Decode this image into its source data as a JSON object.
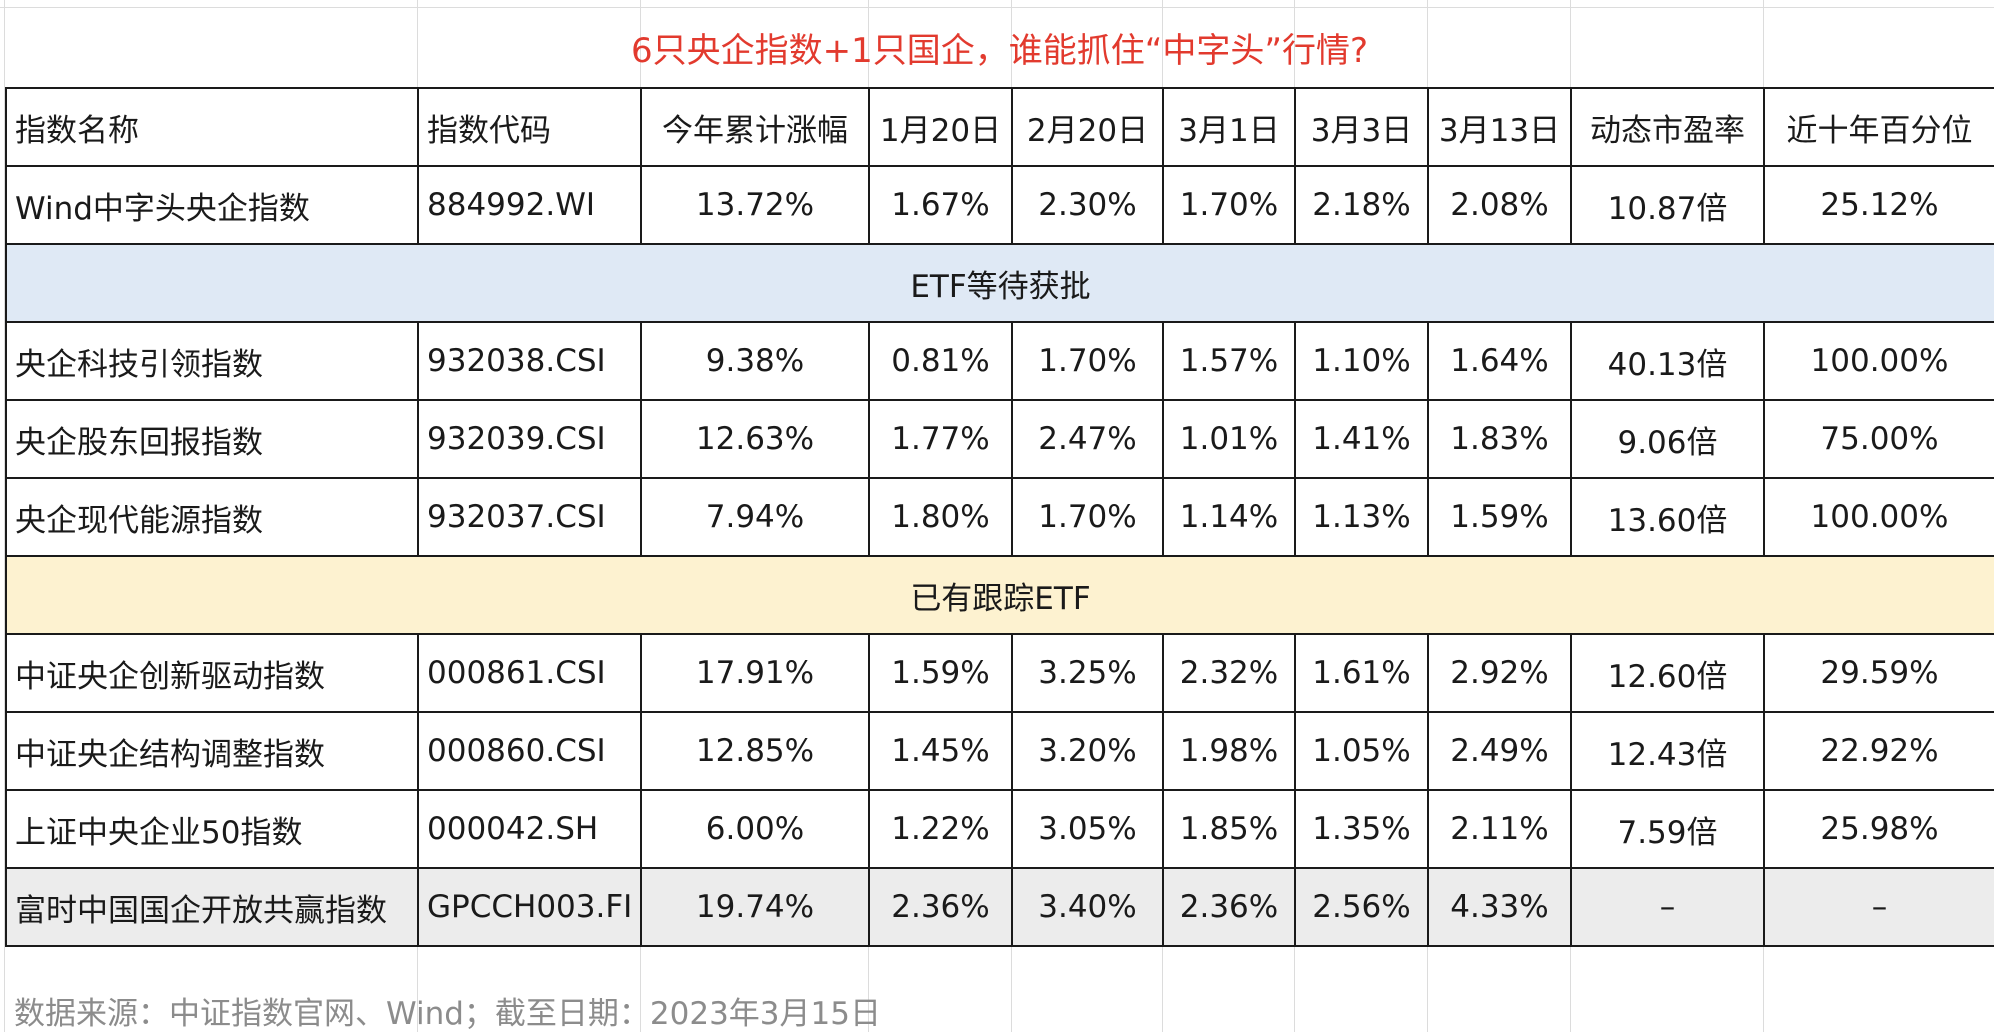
{
  "title": "6只央企指数+1只国企，谁能抓住“中字头”行情?",
  "headers": [
    "指数名称",
    "指数代码",
    "今年累计涨幅",
    "1月20日",
    "2月20日",
    "3月1日",
    "3月3日",
    "3月13日",
    "动态市盈率",
    "近十年百分位"
  ],
  "row_top": [
    "Wind中字头央企指数",
    "884992.WI",
    "13.72%",
    "1.67%",
    "2.30%",
    "1.70%",
    "2.18%",
    "2.08%",
    "10.87倍",
    "25.12%"
  ],
  "section_pending": "ETF等待获批",
  "rows_pending": [
    [
      "央企科技引领指数",
      "932038.CSI",
      "9.38%",
      "0.81%",
      "1.70%",
      "1.57%",
      "1.10%",
      "1.64%",
      "40.13倍",
      "100.00%"
    ],
    [
      "央企股东回报指数",
      "932039.CSI",
      "12.63%",
      "1.77%",
      "2.47%",
      "1.01%",
      "1.41%",
      "1.83%",
      "9.06倍",
      "75.00%"
    ],
    [
      "央企现代能源指数",
      "932037.CSI",
      "7.94%",
      "1.80%",
      "1.70%",
      "1.14%",
      "1.13%",
      "1.59%",
      "13.60倍",
      "100.00%"
    ]
  ],
  "section_tracked": "已有跟踪ETF",
  "rows_tracked": [
    [
      "中证央企创新驱动指数",
      "000861.CSI",
      "17.91%",
      "1.59%",
      "3.25%",
      "2.32%",
      "1.61%",
      "2.92%",
      "12.60倍",
      "29.59%"
    ],
    [
      "中证央企结构调整指数",
      "000860.CSI",
      "12.85%",
      "1.45%",
      "3.20%",
      "1.98%",
      "1.05%",
      "2.49%",
      "12.43倍",
      "22.92%"
    ],
    [
      "上证中央企业50指数",
      "000042.SH",
      "6.00%",
      "1.22%",
      "3.05%",
      "1.85%",
      "1.35%",
      "2.11%",
      "7.59倍",
      "25.98%"
    ]
  ],
  "row_soe": [
    "富时中国国企开放共赢指数",
    "GPCCH003.FI",
    "19.74%",
    "2.36%",
    "3.40%",
    "2.36%",
    "2.56%",
    "4.33%",
    "–",
    "–"
  ],
  "footer": "数据来源：中证指数官网、Wind；截至日期：2023年3月15日",
  "colors": {
    "title": "#e23a2e",
    "section_pending_bg": "#dfe9f5",
    "section_tracked_bg": "#fdf2d0",
    "soe_row_bg": "#ececec",
    "footer_text": "#8c8c8c"
  }
}
